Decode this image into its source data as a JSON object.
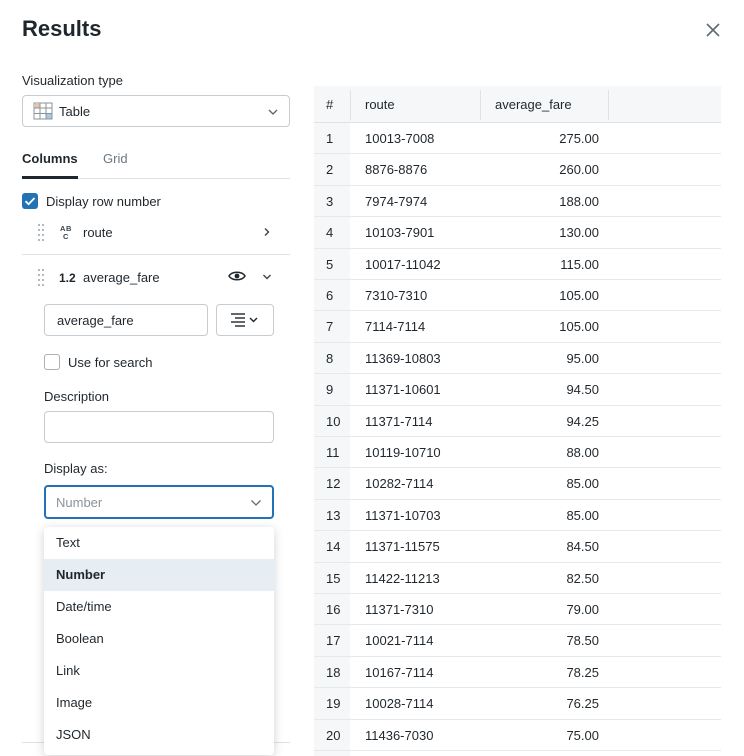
{
  "title": "Results",
  "visualization": {
    "label": "Visualization type",
    "value": "Table"
  },
  "tabs": [
    {
      "label": "Columns"
    },
    {
      "label": "Grid"
    }
  ],
  "display_row_number": {
    "label": "Display row number",
    "checked": true
  },
  "columns": [
    {
      "type_icon": "ABC",
      "name": "route"
    },
    {
      "type_icon": "1.2",
      "name": "average_fare"
    }
  ],
  "column_editor": {
    "name_value": "average_fare",
    "use_for_search_label": "Use for search",
    "description_label": "Description",
    "description_value": "",
    "display_as_label": "Display as:",
    "display_as_placeholder": "Number",
    "options": [
      "Text",
      "Number",
      "Date/time",
      "Boolean",
      "Link",
      "Image",
      "JSON"
    ],
    "selected_option": "Number"
  },
  "table": {
    "headers": [
      "#",
      "route",
      "average_fare"
    ],
    "rows": [
      [
        "1",
        "10013-7008",
        "275.00"
      ],
      [
        "2",
        "8876-8876",
        "260.00"
      ],
      [
        "3",
        "7974-7974",
        "188.00"
      ],
      [
        "4",
        "10103-7901",
        "130.00"
      ],
      [
        "5",
        "10017-11042",
        "115.00"
      ],
      [
        "6",
        "7310-7310",
        "105.00"
      ],
      [
        "7",
        "7114-7114",
        "105.00"
      ],
      [
        "8",
        "11369-10803",
        "95.00"
      ],
      [
        "9",
        "11371-10601",
        "94.50"
      ],
      [
        "10",
        "11371-7114",
        "94.25"
      ],
      [
        "11",
        "10119-10710",
        "88.00"
      ],
      [
        "12",
        "10282-7114",
        "85.00"
      ],
      [
        "13",
        "11371-10703",
        "85.00"
      ],
      [
        "14",
        "11371-11575",
        "84.50"
      ],
      [
        "15",
        "11422-11213",
        "82.50"
      ],
      [
        "16",
        "11371-7310",
        "79.00"
      ],
      [
        "17",
        "10021-7114",
        "78.50"
      ],
      [
        "18",
        "10167-7114",
        "78.25"
      ],
      [
        "19",
        "10028-7114",
        "76.25"
      ],
      [
        "20",
        "11436-7030",
        "75.00"
      ]
    ]
  },
  "colors": {
    "accent": "#2272b4",
    "selected_bg": "#e6eef4",
    "header_bg": "#f5f7f8"
  }
}
